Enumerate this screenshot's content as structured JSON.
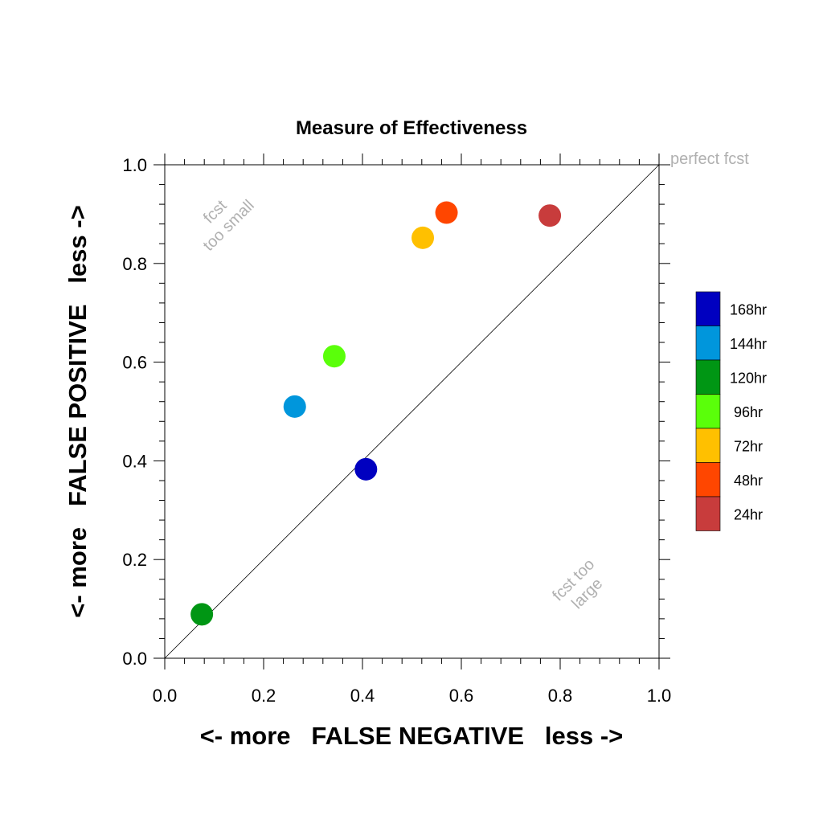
{
  "chart_data": {
    "type": "scatter",
    "title": "Measure of Effectiveness",
    "xlabel": "<- more   FALSE NEGATIVE   less ->",
    "ylabel": "<- more   FALSE POSITIVE   less ->",
    "xlim": [
      0.0,
      1.0
    ],
    "ylim": [
      0.0,
      1.0
    ],
    "x_tick_labels": [
      "0.0",
      "0.2",
      "0.4",
      "0.6",
      "0.8",
      "1.0"
    ],
    "y_tick_labels": [
      "0.0",
      "0.2",
      "0.4",
      "0.6",
      "0.8",
      "1.0"
    ],
    "grid": false,
    "reference_line": {
      "from": [
        0,
        0
      ],
      "to": [
        1,
        1
      ]
    },
    "annotations": {
      "perfect": "perfect fcst",
      "too_small_line1": "fcst",
      "too_small_line2": "too small",
      "too_large_line1": "fcst too",
      "too_large_line2": "large"
    },
    "series": [
      {
        "name": "168hr",
        "color": "#0000C0",
        "x": 0.407,
        "y": 0.383
      },
      {
        "name": "144hr",
        "color": "#0096DC",
        "x": 0.263,
        "y": 0.51
      },
      {
        "name": "120hr",
        "color": "#009614",
        "x": 0.075,
        "y": 0.089
      },
      {
        "name": "96hr",
        "color": "#5AFF0A",
        "x": 0.343,
        "y": 0.612
      },
      {
        "name": "72hr",
        "color": "#FFC000",
        "x": 0.522,
        "y": 0.852
      },
      {
        "name": "48hr",
        "color": "#FF4600",
        "x": 0.57,
        "y": 0.903
      },
      {
        "name": "24hr",
        "color": "#C83C3C",
        "x": 0.779,
        "y": 0.897
      }
    ],
    "legend_position": "right"
  }
}
